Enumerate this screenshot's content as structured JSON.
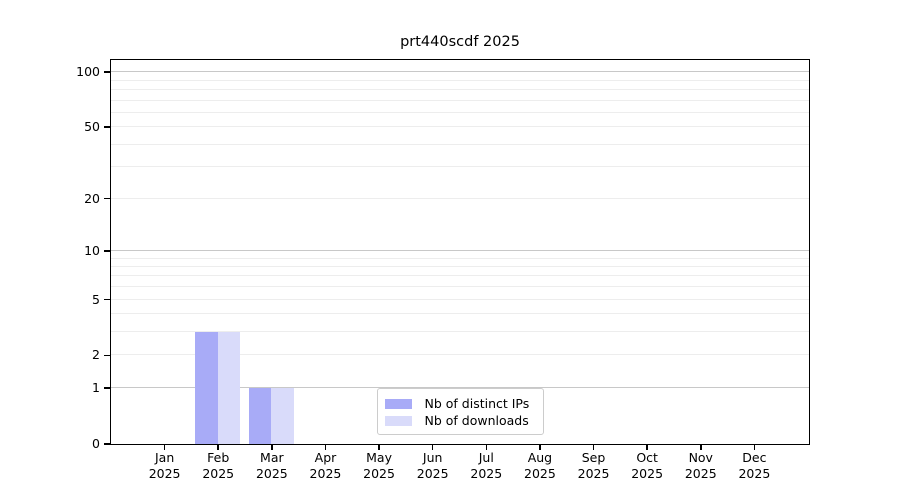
{
  "figure": {
    "title": "prt440scdf 2025"
  },
  "chart_data": {
    "type": "bar",
    "title": "prt440scdf 2025",
    "categories": [
      "Jan 2025",
      "Feb 2025",
      "Mar 2025",
      "Apr 2025",
      "May 2025",
      "Jun 2025",
      "Jul 2025",
      "Aug 2025",
      "Sep 2025",
      "Oct 2025",
      "Nov 2025",
      "Dec 2025"
    ],
    "series": [
      {
        "name": "Nb of distinct IPs",
        "color": "#a8abf7",
        "values": [
          0,
          3,
          1,
          0,
          0,
          0,
          0,
          0,
          0,
          0,
          0,
          0
        ]
      },
      {
        "name": "Nb of downloads",
        "color": "#d9dbfa",
        "values": [
          0,
          3,
          1,
          0,
          0,
          0,
          0,
          0,
          0,
          0,
          0,
          0
        ]
      }
    ],
    "yscale": "log1p",
    "ylim": [
      0,
      115
    ],
    "y_ticks": [
      {
        "label": "0",
        "value": 0
      },
      {
        "label": "1",
        "value": 1
      },
      {
        "label": "2",
        "value": 2
      },
      {
        "label": "5",
        "value": 5
      },
      {
        "label": "10",
        "value": 10
      },
      {
        "label": "20",
        "value": 20
      },
      {
        "label": "50",
        "value": 50
      },
      {
        "label": "100",
        "value": 100
      }
    ],
    "major_gridlines": [
      1,
      10,
      100
    ],
    "minor_gridlines": [
      2,
      3,
      4,
      5,
      6,
      7,
      8,
      9,
      20,
      30,
      40,
      50,
      60,
      70,
      80,
      90
    ],
    "grid": true,
    "legend_position": "inside lower-center"
  }
}
